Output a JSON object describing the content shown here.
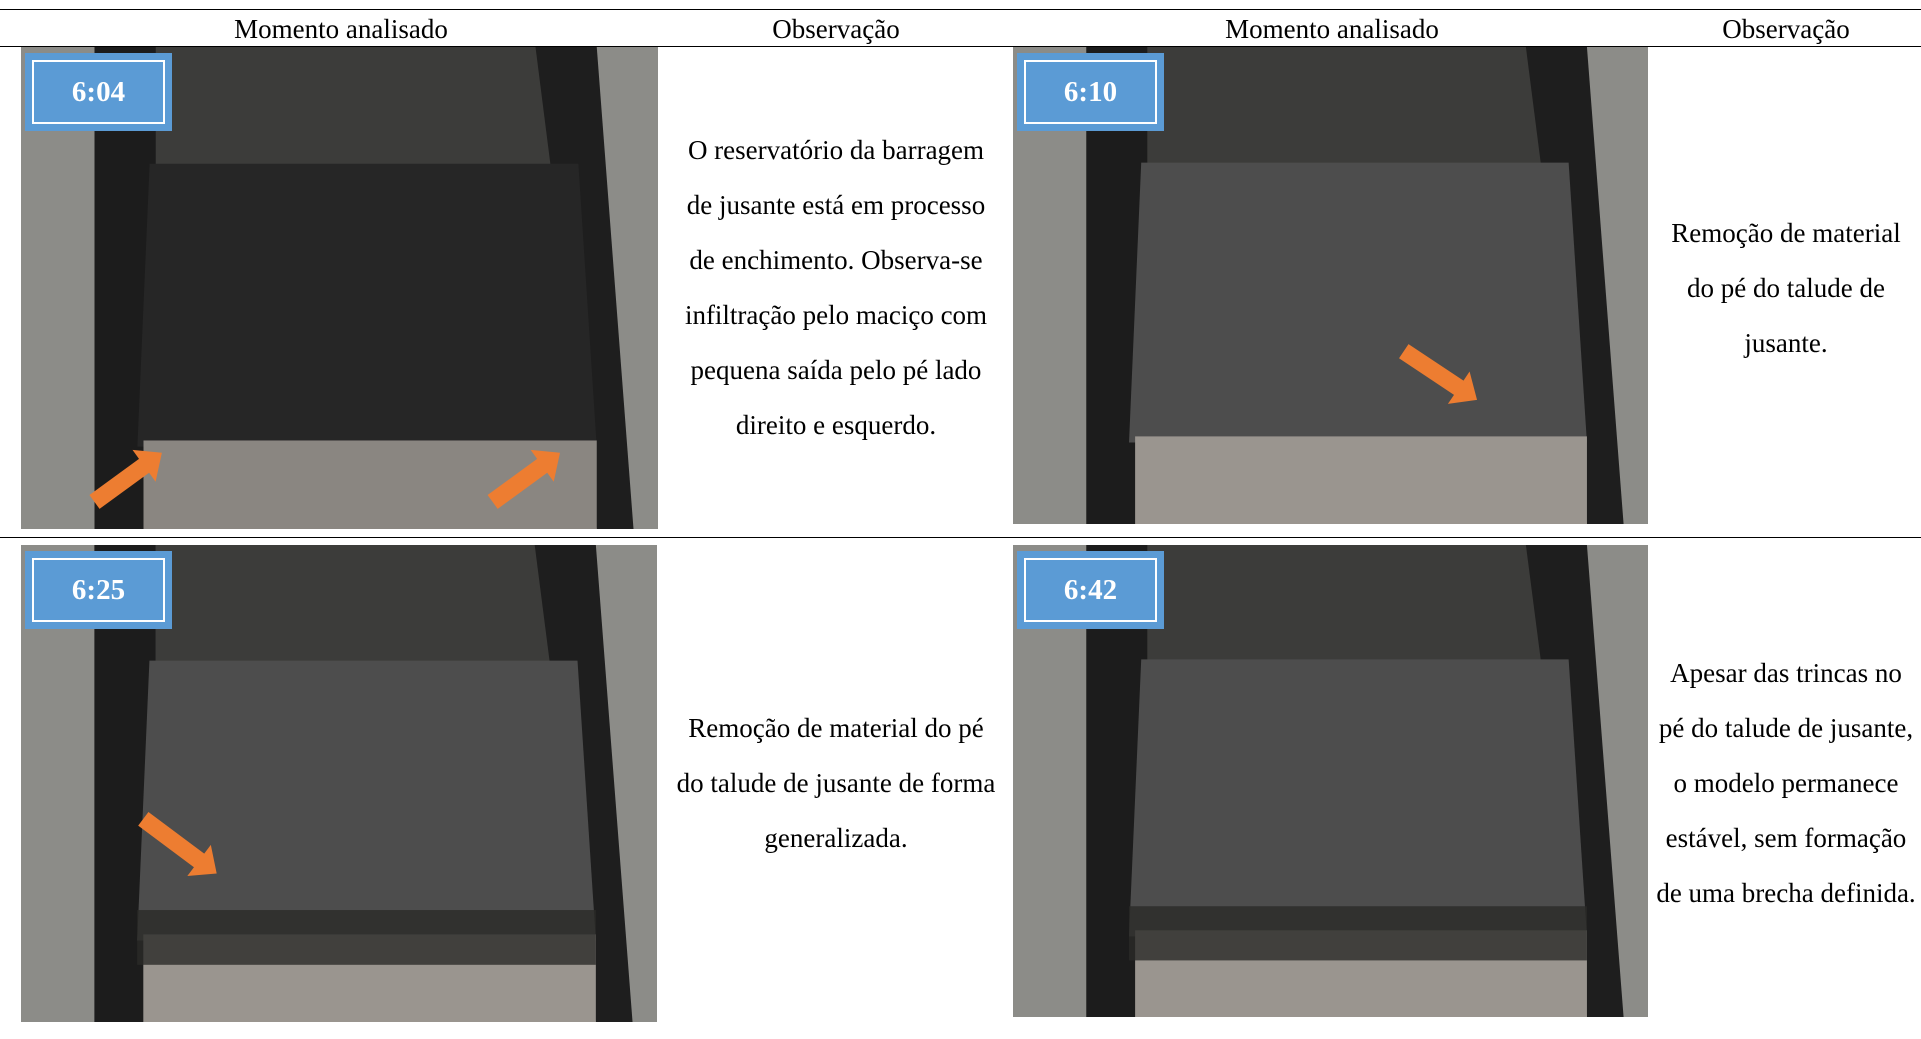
{
  "header": {
    "columns": [
      "Momento analisado",
      "Observação",
      "Momento analisado",
      "Observação"
    ]
  },
  "rows": [
    {
      "cells": [
        {
          "time": "6:04",
          "observation": "O reservatório da barragem de jusante está em processo de enchimento. Observa-se infiltração pelo maciço com pequena saída pelo pé lado direito e esquerdo."
        },
        {
          "time": "6:10",
          "observation": "Remoção de material do pé do talude de jusante."
        }
      ]
    },
    {
      "cells": [
        {
          "time": "6:25",
          "observation": "Remoção de material do pé do talude de jusante de forma generalizada."
        },
        {
          "time": "6:42",
          "observation": "Apesar das trincas no pé do talude de jusante, o modelo permanece estável, sem formação de uma brecha definida."
        }
      ]
    }
  ]
}
